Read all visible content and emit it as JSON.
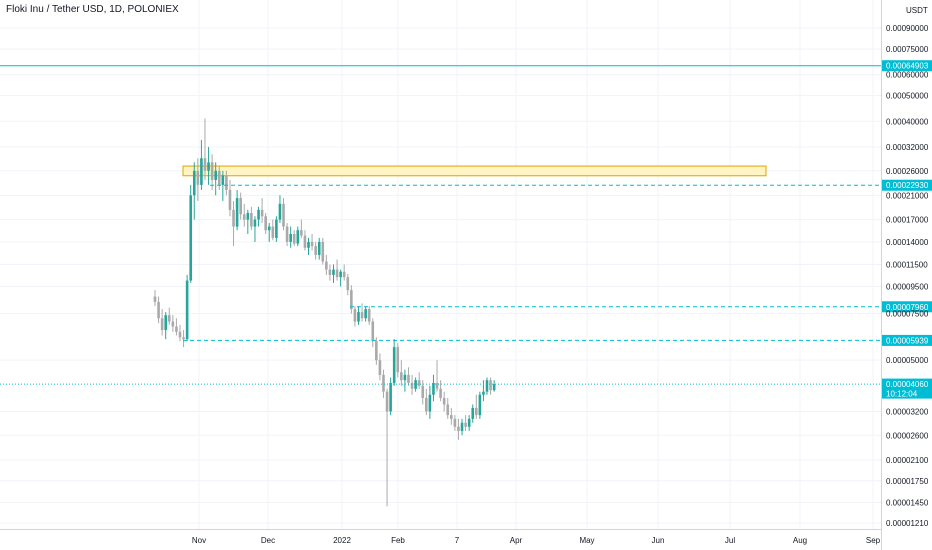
{
  "header": {
    "title": "Floki Inu / Tether USD, 1D, POLONIEX",
    "currency": "USDT"
  },
  "colors": {
    "up": "#26a69a",
    "down": "#a9a9a9",
    "line": "#00bcd4",
    "zone_fill": "#fff4c2",
    "zone_stroke": "#e2a400",
    "grid": "#f0f3fa"
  },
  "chart_data": {
    "type": "candlestick",
    "y_scale": "log",
    "ylim": [
      1.15e-05,
      0.00115
    ],
    "y_ticks": [
      {
        "v": 0.0009,
        "label": "0.00090000"
      },
      {
        "v": 0.00075,
        "label": "0.00075000"
      },
      {
        "v": 0.0006,
        "label": "0.00060000"
      },
      {
        "v": 0.0005,
        "label": "0.00050000"
      },
      {
        "v": 0.0004,
        "label": "0.00040000"
      },
      {
        "v": 0.00032,
        "label": "0.00032000"
      },
      {
        "v": 0.00026,
        "label": "0.00026000"
      },
      {
        "v": 0.00021,
        "label": "0.00021000"
      },
      {
        "v": 0.00017,
        "label": "0.00017000"
      },
      {
        "v": 0.00014,
        "label": "0.00014000"
      },
      {
        "v": 0.000115,
        "label": "0.00011500"
      },
      {
        "v": 9.5e-05,
        "label": "0.00009500"
      },
      {
        "v": 7.5e-05,
        "label": "0.00007500"
      },
      {
        "v": 5e-05,
        "label": "0.00005000"
      },
      {
        "v": 3.2e-05,
        "label": "0.00003200"
      },
      {
        "v": 2.6e-05,
        "label": "0.00002600"
      },
      {
        "v": 2.1e-05,
        "label": "0.00002100"
      },
      {
        "v": 1.75e-05,
        "label": "0.00001750"
      },
      {
        "v": 1.45e-05,
        "label": "0.00001450"
      },
      {
        "v": 1.21e-05,
        "label": "0.00001210"
      }
    ],
    "x_labels": [
      "Nov",
      "Dec",
      "2022",
      "Feb",
      "7",
      "Apr",
      "May",
      "Jun",
      "Jul",
      "Aug",
      "Sep"
    ],
    "horizontal_lines": [
      {
        "value": 0.00064903,
        "label": "0.00064903",
        "style": "solid"
      },
      {
        "value": 0.0002293,
        "label": "0.00022930",
        "style": "dashed"
      },
      {
        "value": 7.96e-05,
        "label": "0.00007960",
        "style": "dashed"
      },
      {
        "value": 5.939e-05,
        "label": "0.00005939",
        "style": "dashed"
      },
      {
        "value": 4.06e-05,
        "label": "0.00004060",
        "style": "dotted",
        "sublabel": "10:12:04"
      }
    ],
    "zone": {
      "low": 0.000249,
      "high": 0.000271
    },
    "candles": [
      {
        "o": 8.7e-05,
        "h": 9.2e-05,
        "l": 8e-05,
        "c": 8.3e-05
      },
      {
        "o": 8.3e-05,
        "h": 8.7e-05,
        "l": 6.9e-05,
        "c": 7.2e-05
      },
      {
        "o": 7.2e-05,
        "h": 7.8e-05,
        "l": 6.2e-05,
        "c": 6.5e-05
      },
      {
        "o": 6.5e-05,
        "h": 7.6e-05,
        "l": 6e-05,
        "c": 7.4e-05
      },
      {
        "o": 7.4e-05,
        "h": 7.9e-05,
        "l": 6.8e-05,
        "c": 7e-05
      },
      {
        "o": 7e-05,
        "h": 7.4e-05,
        "l": 6.4e-05,
        "c": 6.7e-05
      },
      {
        "o": 6.7e-05,
        "h": 7.2e-05,
        "l": 6.2e-05,
        "c": 6.4e-05
      },
      {
        "o": 6.4e-05,
        "h": 6.8e-05,
        "l": 5.9e-05,
        "c": 6.1e-05
      },
      {
        "o": 6.1e-05,
        "h": 6.5e-05,
        "l": 5.6e-05,
        "c": 6e-05
      },
      {
        "o": 6e-05,
        "h": 0.000105,
        "l": 5.9e-05,
        "c": 0.0001
      },
      {
        "o": 0.0001,
        "h": 0.00023,
        "l": 9.8e-05,
        "c": 0.00021
      },
      {
        "o": 0.00021,
        "h": 0.00028,
        "l": 0.00017,
        "c": 0.00026
      },
      {
        "o": 0.00026,
        "h": 0.00029,
        "l": 0.0002,
        "c": 0.00023
      },
      {
        "o": 0.00023,
        "h": 0.00034,
        "l": 0.00022,
        "c": 0.00029
      },
      {
        "o": 0.00029,
        "h": 0.00041,
        "l": 0.00024,
        "c": 0.00026
      },
      {
        "o": 0.00026,
        "h": 0.00032,
        "l": 0.00023,
        "c": 0.00028
      },
      {
        "o": 0.00028,
        "h": 0.0003,
        "l": 0.00022,
        "c": 0.00024
      },
      {
        "o": 0.00024,
        "h": 0.00028,
        "l": 0.00021,
        "c": 0.00026
      },
      {
        "o": 0.00026,
        "h": 0.00027,
        "l": 0.00022,
        "c": 0.00023
      },
      {
        "o": 0.00023,
        "h": 0.00026,
        "l": 0.0002,
        "c": 0.00025
      },
      {
        "o": 0.00025,
        "h": 0.00026,
        "l": 0.00021,
        "c": 0.00022
      },
      {
        "o": 0.00022,
        "h": 0.00024,
        "l": 0.000175,
        "c": 0.000185
      },
      {
        "o": 0.000185,
        "h": 0.0002,
        "l": 0.000135,
        "c": 0.00016
      },
      {
        "o": 0.00016,
        "h": 0.00022,
        "l": 0.000155,
        "c": 0.000205
      },
      {
        "o": 0.000205,
        "h": 0.000215,
        "l": 0.00017,
        "c": 0.000178
      },
      {
        "o": 0.000178,
        "h": 0.000195,
        "l": 0.00016,
        "c": 0.00017
      },
      {
        "o": 0.00017,
        "h": 0.000185,
        "l": 0.00015,
        "c": 0.00018
      },
      {
        "o": 0.00018,
        "h": 0.00019,
        "l": 0.000155,
        "c": 0.00016
      },
      {
        "o": 0.00016,
        "h": 0.000175,
        "l": 0.00014,
        "c": 0.00017
      },
      {
        "o": 0.00017,
        "h": 0.00019,
        "l": 0.00016,
        "c": 0.000185
      },
      {
        "o": 0.000185,
        "h": 0.000205,
        "l": 0.000165,
        "c": 0.000175
      },
      {
        "o": 0.000175,
        "h": 0.00018,
        "l": 0.00015,
        "c": 0.000155
      },
      {
        "o": 0.000155,
        "h": 0.000165,
        "l": 0.00014,
        "c": 0.00016
      },
      {
        "o": 0.00016,
        "h": 0.00017,
        "l": 0.000142,
        "c": 0.000145
      },
      {
        "o": 0.000145,
        "h": 0.000175,
        "l": 0.00014,
        "c": 0.00017
      },
      {
        "o": 0.00017,
        "h": 0.00021,
        "l": 0.000165,
        "c": 0.000195
      },
      {
        "o": 0.000195,
        "h": 0.000205,
        "l": 0.000155,
        "c": 0.00016
      },
      {
        "o": 0.00016,
        "h": 0.000165,
        "l": 0.000135,
        "c": 0.00014
      },
      {
        "o": 0.00014,
        "h": 0.00016,
        "l": 0.000133,
        "c": 0.00015
      },
      {
        "o": 0.00015,
        "h": 0.000155,
        "l": 0.000135,
        "c": 0.000138
      },
      {
        "o": 0.000138,
        "h": 0.00016,
        "l": 0.000135,
        "c": 0.000155
      },
      {
        "o": 0.000155,
        "h": 0.00017,
        "l": 0.000145,
        "c": 0.000148
      },
      {
        "o": 0.000148,
        "h": 0.000155,
        "l": 0.00013,
        "c": 0.000133
      },
      {
        "o": 0.000133,
        "h": 0.000145,
        "l": 0.000125,
        "c": 0.00014
      },
      {
        "o": 0.00014,
        "h": 0.00015,
        "l": 0.00013,
        "c": 0.000135
      },
      {
        "o": 0.000135,
        "h": 0.00014,
        "l": 0.00012,
        "c": 0.000125
      },
      {
        "o": 0.000125,
        "h": 0.000145,
        "l": 0.00012,
        "c": 0.00014
      },
      {
        "o": 0.00014,
        "h": 0.000145,
        "l": 0.000115,
        "c": 0.000118
      },
      {
        "o": 0.000118,
        "h": 0.000125,
        "l": 0.000105,
        "c": 0.00011
      },
      {
        "o": 0.00011,
        "h": 0.000115,
        "l": 0.0001,
        "c": 0.000105
      },
      {
        "o": 0.000105,
        "h": 0.000115,
        "l": 9.8e-05,
        "c": 0.00011
      },
      {
        "o": 0.00011,
        "h": 0.00012,
        "l": 0.0001,
        "c": 0.000103
      },
      {
        "o": 0.000103,
        "h": 0.00011,
        "l": 9.5e-05,
        "c": 0.000108
      },
      {
        "o": 0.000108,
        "h": 0.000115,
        "l": 0.0001,
        "c": 0.000103
      },
      {
        "o": 0.000103,
        "h": 0.000106,
        "l": 8.8e-05,
        "c": 9.2e-05
      },
      {
        "o": 9.2e-05,
        "h": 9.6e-05,
        "l": 7.5e-05,
        "c": 7.8e-05
      },
      {
        "o": 7.8e-05,
        "h": 8e-05,
        "l": 6.7e-05,
        "c": 7e-05
      },
      {
        "o": 7e-05,
        "h": 8e-05,
        "l": 6.8e-05,
        "c": 7.6e-05
      },
      {
        "o": 7.6e-05,
        "h": 8.2e-05,
        "l": 7e-05,
        "c": 7.2e-05
      },
      {
        "o": 7.2e-05,
        "h": 8e-05,
        "l": 7e-05,
        "c": 7.8e-05
      },
      {
        "o": 7.8e-05,
        "h": 8e-05,
        "l": 6.8e-05,
        "c": 7e-05
      },
      {
        "o": 7e-05,
        "h": 7.2e-05,
        "l": 5.6e-05,
        "c": 5.9e-05
      },
      {
        "o": 5.9e-05,
        "h": 6.1e-05,
        "l": 4.8e-05,
        "c": 5e-05
      },
      {
        "o": 5e-05,
        "h": 5.3e-05,
        "l": 4.2e-05,
        "c": 4.4e-05
      },
      {
        "o": 4.4e-05,
        "h": 4.6e-05,
        "l": 3.6e-05,
        "c": 3.8e-05
      },
      {
        "o": 3.8e-05,
        "h": 3.9e-05,
        "l": 1.4e-05,
        "c": 3.2e-05
      },
      {
        "o": 3.2e-05,
        "h": 4.3e-05,
        "l": 3.1e-05,
        "c": 4.1e-05
      },
      {
        "o": 4.1e-05,
        "h": 6e-05,
        "l": 4e-05,
        "c": 5.6e-05
      },
      {
        "o": 5.6e-05,
        "h": 5.8e-05,
        "l": 4.3e-05,
        "c": 4.5e-05
      },
      {
        "o": 4.5e-05,
        "h": 5e-05,
        "l": 4e-05,
        "c": 4.2e-05
      },
      {
        "o": 4.2e-05,
        "h": 4.6e-05,
        "l": 3.8e-05,
        "c": 4.4e-05
      },
      {
        "o": 4.4e-05,
        "h": 4.7e-05,
        "l": 4e-05,
        "c": 4.1e-05
      },
      {
        "o": 4.1e-05,
        "h": 4.4e-05,
        "l": 3.7e-05,
        "c": 3.9e-05
      },
      {
        "o": 3.9e-05,
        "h": 4.3e-05,
        "l": 3.8e-05,
        "c": 4.2e-05
      },
      {
        "o": 4.2e-05,
        "h": 4.5e-05,
        "l": 3.9e-05,
        "c": 4e-05
      },
      {
        "o": 4e-05,
        "h": 4.2e-05,
        "l": 3.4e-05,
        "c": 3.6e-05
      },
      {
        "o": 3.6e-05,
        "h": 3.9e-05,
        "l": 3.1e-05,
        "c": 3.2e-05
      },
      {
        "o": 3.2e-05,
        "h": 4e-05,
        "l": 3e-05,
        "c": 3.7e-05
      },
      {
        "o": 3.7e-05,
        "h": 4.4e-05,
        "l": 3.5e-05,
        "c": 4.1e-05
      },
      {
        "o": 4.1e-05,
        "h": 5e-05,
        "l": 3.8e-05,
        "c": 3.9e-05
      },
      {
        "o": 3.9e-05,
        "h": 4.2e-05,
        "l": 3.5e-05,
        "c": 3.6e-05
      },
      {
        "o": 3.6e-05,
        "h": 3.8e-05,
        "l": 3.2e-05,
        "c": 3.4e-05
      },
      {
        "o": 3.4e-05,
        "h": 3.6e-05,
        "l": 3e-05,
        "c": 3.1e-05
      },
      {
        "o": 3.1e-05,
        "h": 3.3e-05,
        "l": 2.85e-05,
        "c": 3e-05
      },
      {
        "o": 3e-05,
        "h": 3.1e-05,
        "l": 2.7e-05,
        "c": 2.8e-05
      },
      {
        "o": 2.8e-05,
        "h": 3e-05,
        "l": 2.5e-05,
        "c": 2.7e-05
      },
      {
        "o": 2.7e-05,
        "h": 3e-05,
        "l": 2.6e-05,
        "c": 2.9e-05
      },
      {
        "o": 2.9e-05,
        "h": 3.1e-05,
        "l": 2.7e-05,
        "c": 2.8e-05
      },
      {
        "o": 2.8e-05,
        "h": 3.1e-05,
        "l": 2.7e-05,
        "c": 3e-05
      },
      {
        "o": 3e-05,
        "h": 3.4e-05,
        "l": 2.9e-05,
        "c": 3.3e-05
      },
      {
        "o": 3.3e-05,
        "h": 3.7e-05,
        "l": 3e-05,
        "c": 3.1e-05
      },
      {
        "o": 3.1e-05,
        "h": 3.8e-05,
        "l": 3e-05,
        "c": 3.7e-05
      },
      {
        "o": 3.7e-05,
        "h": 4.2e-05,
        "l": 3.5e-05,
        "c": 3.8e-05
      },
      {
        "o": 3.8e-05,
        "h": 4.3e-05,
        "l": 3.7e-05,
        "c": 4.2e-05
      },
      {
        "o": 4.2e-05,
        "h": 4.3e-05,
        "l": 3.7e-05,
        "c": 3.85e-05
      },
      {
        "o": 3.85e-05,
        "h": 4.2e-05,
        "l": 3.8e-05,
        "c": 4.06e-05
      }
    ]
  }
}
